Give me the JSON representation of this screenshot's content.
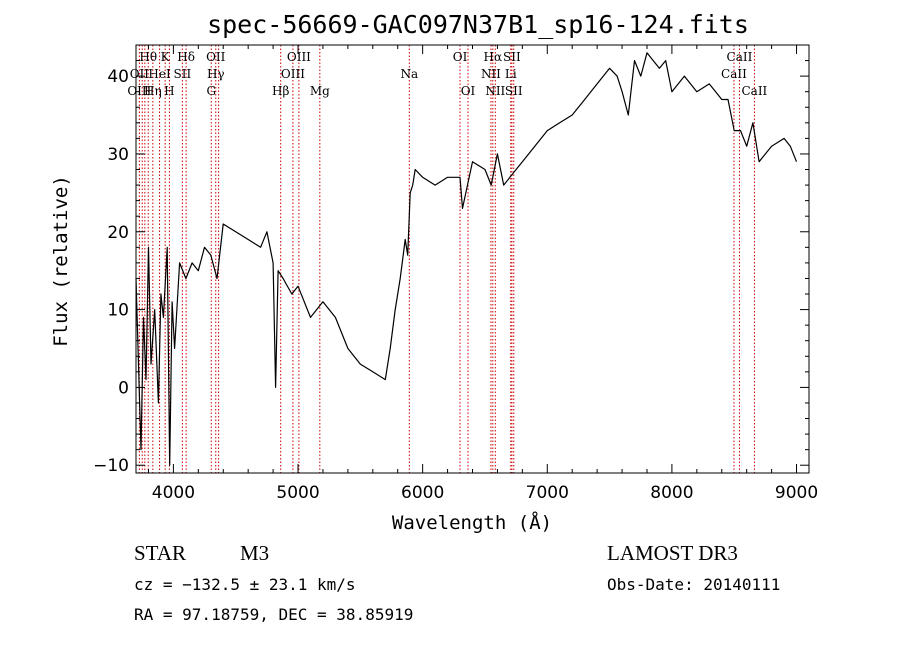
{
  "chart_data": {
    "type": "line",
    "title": "spec-56669-GAC097N37B1_sp16-124.fits",
    "xlabel": "Wavelength (Å)",
    "ylabel": "Flux (relative)",
    "xlim": [
      3700,
      9100
    ],
    "ylim": [
      -11,
      44
    ],
    "x_ticks": [
      4000,
      5000,
      6000,
      7000,
      8000,
      9000
    ],
    "x_tick_labels": [
      "4000",
      "5000",
      "6000",
      "7000",
      "8000",
      "9000"
    ],
    "y_ticks": [
      -10,
      0,
      10,
      20,
      30,
      40
    ],
    "y_tick_labels": [
      "−10",
      "0",
      "10",
      "20",
      "30",
      "40"
    ],
    "grid": false,
    "series": [
      {
        "x": [
          3700,
          3720,
          3740,
          3760,
          3780,
          3800,
          3820,
          3850,
          3880,
          3900,
          3920,
          3950,
          3970,
          3990,
          4010,
          4050,
          4100,
          4150,
          4200,
          4250,
          4300,
          4350,
          4400,
          4500,
          4600,
          4700,
          4750,
          4800,
          4820,
          4840,
          4880,
          4950,
          5000,
          5100,
          5200,
          5300,
          5400,
          5500,
          5600,
          5700,
          5740,
          5780,
          5820,
          5860,
          5880,
          5900,
          5920,
          5940,
          6000,
          6100,
          6200,
          6300,
          6320,
          6400,
          6500,
          6550,
          6600,
          6650,
          6700,
          6750,
          6800,
          6900,
          7000,
          7100,
          7200,
          7300,
          7400,
          7500,
          7560,
          7600,
          7650,
          7700,
          7750,
          7800,
          7850,
          7900,
          7950,
          8000,
          8100,
          8200,
          8300,
          8400,
          8450,
          8500,
          8550,
          8600,
          8650,
          8700,
          8800,
          8900,
          8950,
          9000
        ],
        "y": [
          14,
          3,
          -8,
          9,
          1,
          18,
          3,
          10,
          -2,
          12,
          9,
          18,
          -10,
          11,
          5,
          16,
          14,
          16,
          15,
          18,
          17,
          14,
          21,
          20,
          19,
          18,
          20,
          16,
          0,
          15,
          14,
          12,
          13,
          9,
          11,
          9,
          5,
          3,
          2,
          1,
          5,
          10,
          14,
          19,
          17,
          25,
          26,
          28,
          27,
          26,
          27,
          27,
          23,
          29,
          28,
          26,
          30,
          26,
          27,
          28,
          29,
          31,
          33,
          34,
          35,
          37,
          39,
          41,
          40,
          38,
          35,
          42,
          40,
          43,
          42,
          41,
          42,
          38,
          40,
          38,
          39,
          37,
          37,
          33,
          33,
          31,
          34,
          29,
          31,
          32,
          31,
          29
        ]
      }
    ],
    "annotations": [
      {
        "label": "Hθ",
        "x": 3798,
        "row": 0
      },
      {
        "label": "K",
        "x": 3934,
        "row": 0
      },
      {
        "label": "Hδ",
        "x": 4102,
        "row": 0
      },
      {
        "label": "OII",
        "x": 4340,
        "row": 0
      },
      {
        "label": "OIII",
        "x": 5007,
        "row": 0
      },
      {
        "label": "OI",
        "x": 6300,
        "row": 0
      },
      {
        "label": "Hα",
        "x": 6563,
        "row": 0
      },
      {
        "label": "SII",
        "x": 6716,
        "row": 0
      },
      {
        "label": "CaII",
        "x": 8542,
        "row": 0
      },
      {
        "label": "OII",
        "x": 3727,
        "row": 1
      },
      {
        "label": "HeI",
        "x": 3889,
        "row": 1
      },
      {
        "label": "SII",
        "x": 4072,
        "row": 1
      },
      {
        "label": "Hγ",
        "x": 4340,
        "row": 1
      },
      {
        "label": "OIII",
        "x": 4959,
        "row": 1
      },
      {
        "label": "Na",
        "x": 5893,
        "row": 1
      },
      {
        "label": "NII",
        "x": 6548,
        "row": 1
      },
      {
        "label": "Li",
        "x": 6707,
        "row": 1
      },
      {
        "label": "CaII",
        "x": 8498,
        "row": 1
      },
      {
        "label": "OIII",
        "x": 3727,
        "row": 2
      },
      {
        "label": "Hη",
        "x": 3835,
        "row": 2
      },
      {
        "label": "H",
        "x": 3968,
        "row": 2
      },
      {
        "label": "G",
        "x": 4304,
        "row": 2
      },
      {
        "label": "Hβ",
        "x": 4861,
        "row": 2
      },
      {
        "label": "Mg",
        "x": 5175,
        "row": 2
      },
      {
        "label": "OI",
        "x": 6364,
        "row": 2
      },
      {
        "label": "NII",
        "x": 6583,
        "row": 2
      },
      {
        "label": "SII",
        "x": 6731,
        "row": 2
      },
      {
        "label": "CaII",
        "x": 8662,
        "row": 2
      }
    ],
    "vlines": [
      3727,
      3750,
      3771,
      3798,
      3835,
      3889,
      3934,
      3968,
      4072,
      4102,
      4304,
      4340,
      4363,
      4861,
      4959,
      5007,
      5175,
      5893,
      6300,
      6364,
      6548,
      6563,
      6583,
      6707,
      6716,
      6731,
      8498,
      8542,
      8662
    ]
  },
  "footer": {
    "object_class": "STAR",
    "subclass": "M3",
    "survey": "LAMOST DR3",
    "redshift": "cz = −132.5 ± 23.1 km/s",
    "obs_date": "Obs-Date: 20140111",
    "coords": "RA =  97.18759, DEC =  38.85919"
  },
  "colors": {
    "line": "#000000",
    "marker_lines": "#cc0000"
  }
}
